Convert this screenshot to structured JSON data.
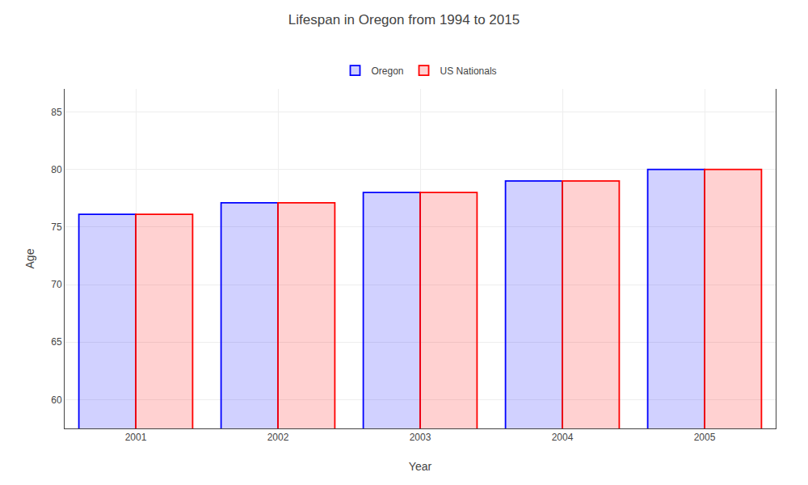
{
  "chart_data": {
    "type": "bar",
    "title": "Lifespan in Oregon from 1994 to 2015",
    "x_label": "Year",
    "y_label": "Age",
    "categories": [
      "2001",
      "2002",
      "2003",
      "2004",
      "2005"
    ],
    "series": [
      {
        "name": "Oregon",
        "color": "#0000ff",
        "values": [
          76.1,
          77.1,
          78.0,
          79.0,
          80.0
        ]
      },
      {
        "name": "US Nationals",
        "color": "#ff0000",
        "values": [
          76.1,
          77.1,
          78.0,
          79.0,
          80.0
        ]
      }
    ],
    "ylim": [
      57.5,
      87
    ],
    "yticks": [
      60,
      65,
      70,
      75,
      80,
      85
    ],
    "grid": true,
    "legend": "top"
  }
}
